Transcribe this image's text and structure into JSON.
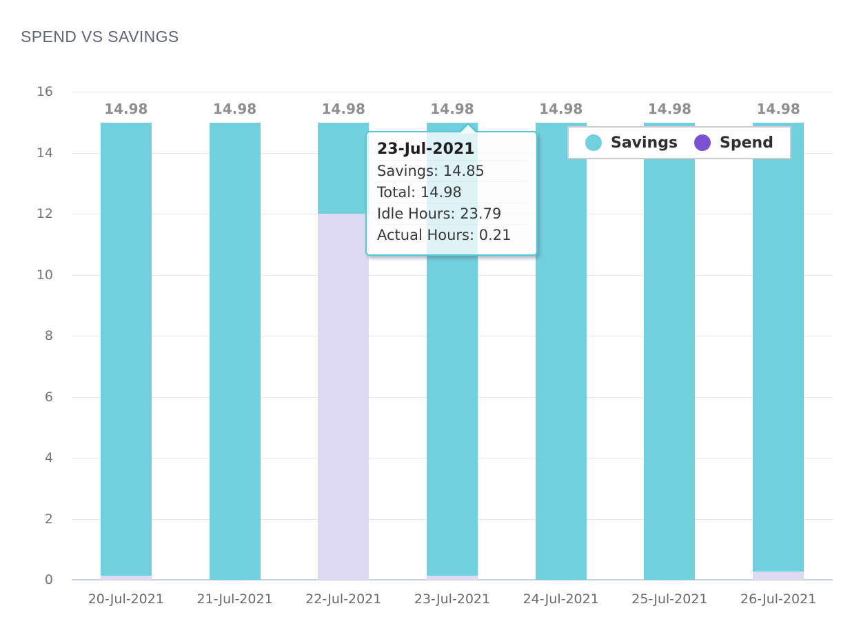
{
  "page": {
    "title": "SPEND VS SAVINGS"
  },
  "chart_data": {
    "type": "bar",
    "stacked": true,
    "title": "SPEND VS SAVINGS",
    "categories": [
      "20-Jul-2021",
      "21-Jul-2021",
      "22-Jul-2021",
      "23-Jul-2021",
      "24-Jul-2021",
      "25-Jul-2021",
      "26-Jul-2021"
    ],
    "series": [
      {
        "name": "Spend",
        "bar_color": "#DFDAF3",
        "legend_color": "#7B52D4",
        "values": [
          0.14,
          0,
          12.0,
          0.13,
          0,
          0,
          0.28
        ]
      },
      {
        "name": "Savings",
        "bar_color": "#71D0DD",
        "legend_color": "#71D0DD",
        "values": [
          14.84,
          14.98,
          2.98,
          14.85,
          14.98,
          14.98,
          14.7
        ]
      }
    ],
    "totals": [
      14.98,
      14.98,
      14.98,
      14.98,
      14.98,
      14.98,
      14.98
    ],
    "total_labels": [
      "14.98",
      "14.98",
      "14.98",
      "14.98",
      "14.98",
      "14.98",
      "14.98"
    ],
    "ylim": [
      0,
      16
    ],
    "yticks": [
      0,
      2,
      4,
      6,
      8,
      10,
      12,
      14,
      16
    ],
    "grid": "horizontal",
    "legend_position": "top-right"
  },
  "legend": {
    "items": [
      {
        "label": "Savings",
        "color": "#71D0DD"
      },
      {
        "label": "Spend",
        "color": "#7B52D4"
      }
    ]
  },
  "tooltip": {
    "title": "23-Jul-2021",
    "rows": [
      "Savings: 14.85",
      "Total: 14.98",
      "Idle Hours: 23.79",
      "Actual Hours: 0.21"
    ]
  },
  "colors": {
    "savings_bar": "#71D0DD",
    "spend_bar_fill": "#DFDAF3",
    "spend_legend": "#7B52D4",
    "grid_line": "#E7E7E9",
    "zero_axis_line": "#CBD1E4",
    "tooltip_border": "#54C8D6",
    "title_text": "#5E6378",
    "value_label_text": "#8E8E8E"
  }
}
